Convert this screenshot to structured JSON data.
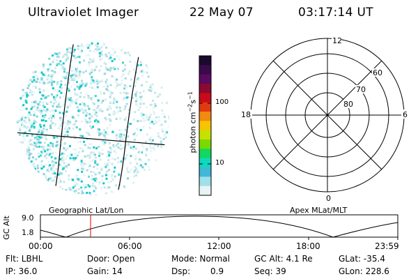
{
  "header": {
    "title": "Ultraviolet Imager",
    "date": "22 May 07",
    "time": "03:17:14 UT"
  },
  "colorbar": {
    "label": "photon cm^-2 s^-1",
    "ticks": [
      "100",
      "10"
    ],
    "colors": [
      "#1a0a2e",
      "#3a0a4a",
      "#5a0a60",
      "#8a0a30",
      "#c80a1a",
      "#e23a10",
      "#f08a10",
      "#f6c400",
      "#c8e000",
      "#7ada00",
      "#10d860",
      "#10d8c0",
      "#40b8d8",
      "#a0e0e8",
      "#e8f4f4"
    ]
  },
  "polar": {
    "labels": {
      "top": "12",
      "left": "18",
      "right": "6",
      "bottom": "0"
    },
    "rings": [
      "60",
      "70",
      "80"
    ]
  },
  "footer": {
    "left_label": "Geographic Lat/Lon",
    "right_label": "Apex MLat/MLT",
    "axis_label": "GC Alt",
    "y_ticks": [
      "9.0",
      "1.8"
    ],
    "x_ticks": [
      "00:00",
      "06:00",
      "12:00",
      "18:00",
      "23:59"
    ]
  },
  "info": {
    "flt": "Flt: LBHL",
    "ip": "IP: 36.0",
    "door": "Door: Open",
    "gain": "Gain: 14",
    "mode": "Mode: Normal",
    "dsp_label": "Dsp:",
    "dsp_value": "0.9",
    "gc_alt": "GC Alt: 4.1 Re",
    "seq": "Seq: 39",
    "glat": "GLat: -35.4",
    "glon": "GLon: 228.6"
  }
}
